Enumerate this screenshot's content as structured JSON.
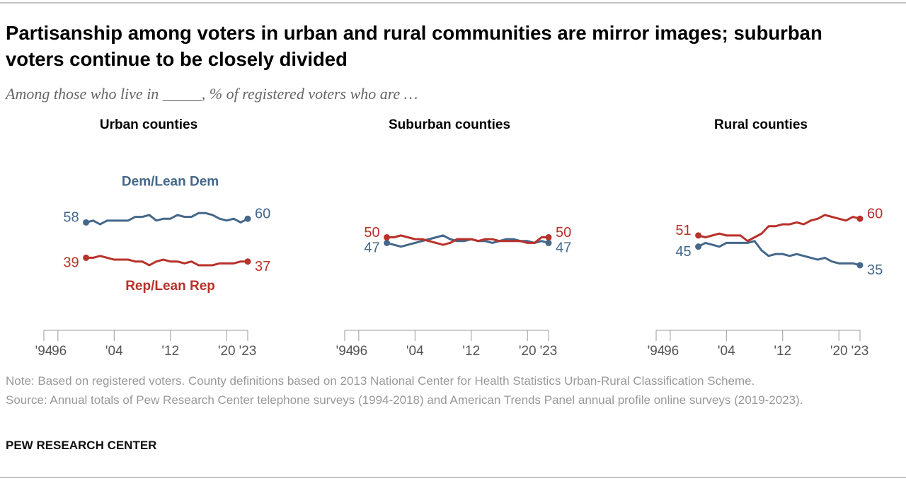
{
  "header": {
    "title": "Partisanship among voters in urban and rural communities are mirror images; suburban voters continue to be closely divided",
    "subtitle": "Among those who live in _____, % of registered voters who are …"
  },
  "chart_data": [
    {
      "type": "line",
      "title": "Urban counties",
      "x": [
        2000,
        2001,
        2002,
        2003,
        2004,
        2005,
        2006,
        2007,
        2008,
        2009,
        2010,
        2011,
        2012,
        2013,
        2014,
        2015,
        2016,
        2017,
        2018,
        2019,
        2020,
        2021,
        2022,
        2023
      ],
      "xlim": [
        1994,
        2023
      ],
      "xticks": [
        {
          "value": 1994,
          "label": "'94"
        },
        {
          "value": 1996,
          "label": "'96"
        },
        {
          "value": 2004,
          "label": "'04"
        },
        {
          "value": 2012,
          "label": "'12"
        },
        {
          "value": 2020,
          "label": "'20"
        },
        {
          "value": 2023,
          "label": "'23"
        }
      ],
      "ylim": [
        0,
        100
      ],
      "series": [
        {
          "name": "Dem/Lean Dem",
          "color": "#44678a",
          "values": [
            58,
            59,
            57,
            59,
            59,
            59,
            59,
            61,
            61,
            62,
            59,
            60,
            60,
            62,
            61,
            61,
            63,
            63,
            62,
            60,
            59,
            60,
            58,
            60
          ]
        },
        {
          "name": "Rep/Lean Rep",
          "color": "#b8312a",
          "values": [
            39,
            39,
            40,
            39,
            38,
            38,
            38,
            37,
            37,
            35,
            37,
            38,
            37,
            37,
            36,
            37,
            35,
            35,
            35,
            36,
            36,
            36,
            37,
            37
          ]
        }
      ]
    },
    {
      "type": "line",
      "title": "Suburban counties",
      "x": [
        2000,
        2001,
        2002,
        2003,
        2004,
        2005,
        2006,
        2007,
        2008,
        2009,
        2010,
        2011,
        2012,
        2013,
        2014,
        2015,
        2016,
        2017,
        2018,
        2019,
        2020,
        2021,
        2022,
        2023
      ],
      "xlim": [
        1994,
        2023
      ],
      "xticks": [
        {
          "value": 1994,
          "label": "'94"
        },
        {
          "value": 1996,
          "label": "'96"
        },
        {
          "value": 2004,
          "label": "'04"
        },
        {
          "value": 2012,
          "label": "'12"
        },
        {
          "value": 2020,
          "label": "'20"
        },
        {
          "value": 2023,
          "label": "'23"
        }
      ],
      "ylim": [
        0,
        100
      ],
      "series": [
        {
          "color": "#44678a",
          "values": [
            47,
            46,
            45,
            46,
            47,
            48,
            49,
            50,
            51,
            49,
            48,
            48,
            49,
            48,
            48,
            47,
            48,
            49,
            49,
            48,
            48,
            47,
            48,
            47
          ]
        },
        {
          "color": "#b8312a",
          "values": [
            50,
            50,
            51,
            50,
            49,
            49,
            48,
            47,
            46,
            47,
            49,
            49,
            49,
            48,
            49,
            49,
            48,
            48,
            48,
            48,
            47,
            47,
            50,
            50
          ]
        }
      ]
    },
    {
      "type": "line",
      "title": "Rural counties",
      "x": [
        2000,
        2001,
        2002,
        2003,
        2004,
        2005,
        2006,
        2007,
        2008,
        2009,
        2010,
        2011,
        2012,
        2013,
        2014,
        2015,
        2016,
        2017,
        2018,
        2019,
        2020,
        2021,
        2022,
        2023
      ],
      "xlim": [
        1994,
        2023
      ],
      "xticks": [
        {
          "value": 1994,
          "label": "'94"
        },
        {
          "value": 1996,
          "label": "'96"
        },
        {
          "value": 2004,
          "label": "'04"
        },
        {
          "value": 2012,
          "label": "'12"
        },
        {
          "value": 2020,
          "label": "'20"
        },
        {
          "value": 2023,
          "label": "'23"
        }
      ],
      "ylim": [
        0,
        100
      ],
      "series": [
        {
          "color": "#44678a",
          "values": [
            45,
            47,
            46,
            45,
            47,
            47,
            47,
            47,
            48,
            43,
            40,
            41,
            41,
            40,
            41,
            40,
            39,
            38,
            39,
            37,
            36,
            36,
            36,
            35
          ]
        },
        {
          "color": "#b8312a",
          "values": [
            51,
            50,
            51,
            52,
            51,
            51,
            51,
            48,
            50,
            52,
            56,
            56,
            57,
            57,
            58,
            57,
            59,
            60,
            62,
            61,
            60,
            59,
            61,
            60
          ]
        }
      ]
    }
  ],
  "footer": {
    "note": "Note: Based on registered voters. County definitions based on 2013 National Center for Health Statistics Urban-Rural Classification Scheme.",
    "source": "Source: Annual totals of Pew Research Center telephone surveys (1994-2018) and American Trends Panel annual profile online surveys (2019-2023).",
    "credit": "PEW RESEARCH CENTER"
  }
}
